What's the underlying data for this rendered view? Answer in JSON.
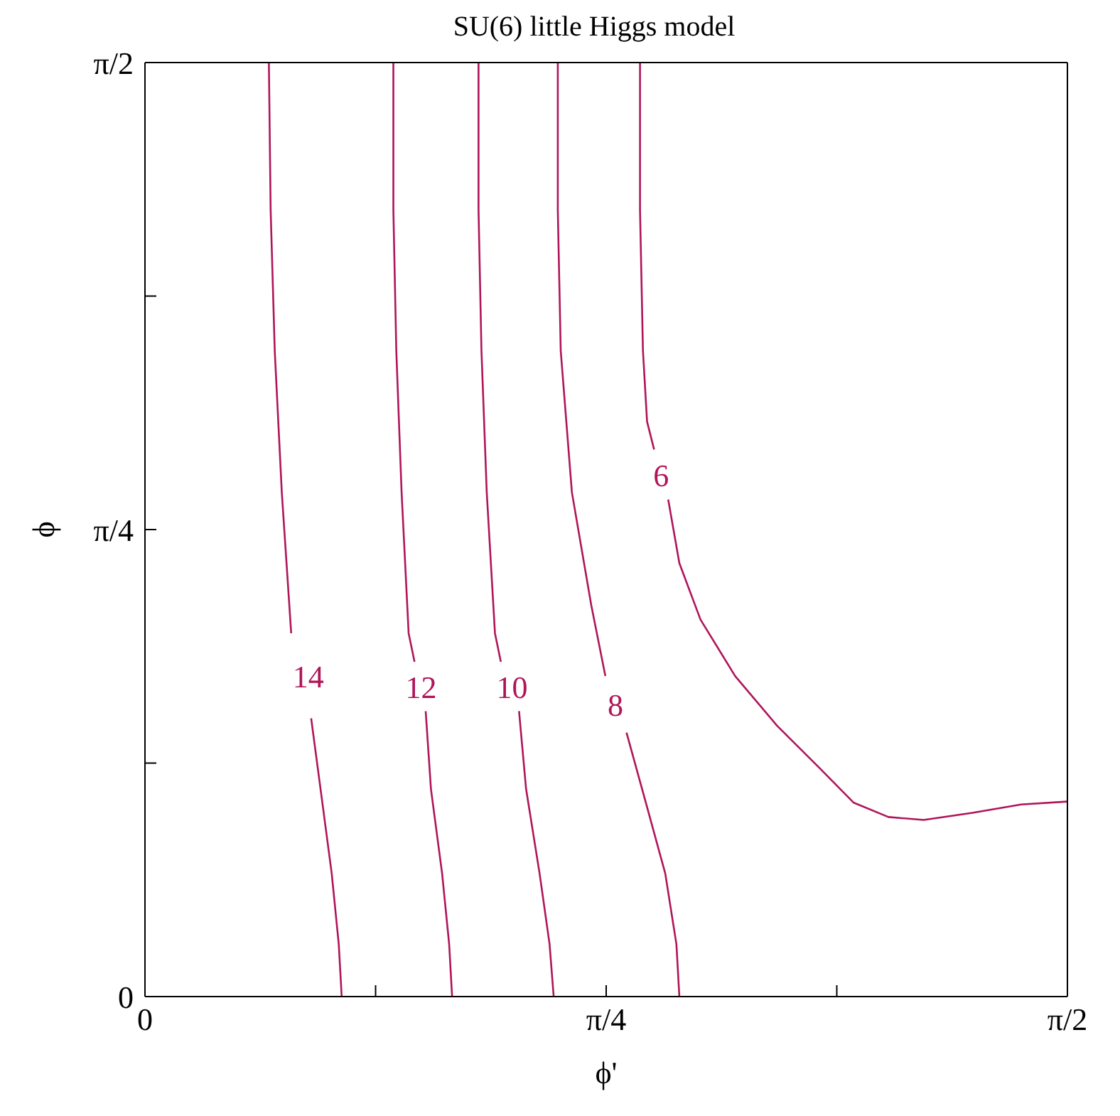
{
  "chart_data": {
    "type": "line",
    "title": "SU(6) little Higgs model",
    "xlabel": "ϕ'",
    "ylabel": "ϕ",
    "xlim": [
      0,
      1.5708
    ],
    "ylim": [
      0,
      1.5708
    ],
    "xticks": [
      {
        "value": 0,
        "label": "0"
      },
      {
        "value": 0.3927,
        "label": null
      },
      {
        "value": 0.7854,
        "label": "π/4"
      },
      {
        "value": 1.1781,
        "label": null
      },
      {
        "value": 1.5708,
        "label": "π/2"
      }
    ],
    "yticks": [
      {
        "value": 0,
        "label": "0"
      },
      {
        "value": 0.3927,
        "label": null
      },
      {
        "value": 0.7854,
        "label": "π/4"
      },
      {
        "value": 1.1781,
        "label": null
      },
      {
        "value": 1.5708,
        "label": "π/2"
      }
    ],
    "grid": false,
    "legend": false,
    "marker": "none",
    "line_style": "solid",
    "series": [
      {
        "name": "14",
        "color": "#b0155a",
        "x": [
          0.211,
          0.214,
          0.221,
          0.233,
          0.249,
          0.278,
          0.283,
          0.299,
          0.318,
          0.33,
          0.335
        ],
        "values": [
          1.5708,
          1.323,
          1.086,
          0.848,
          0.611,
          null,
          0.468,
          0.349,
          0.207,
          0.088,
          0
        ]
      },
      {
        "name": "12",
        "color": "#b0155a",
        "x": [
          0.423,
          0.423,
          0.428,
          0.437,
          0.449,
          0.459,
          0.47,
          0.478,
          0.487,
          0.506,
          0.518,
          0.523
        ],
        "values": [
          1.5708,
          1.323,
          1.086,
          0.848,
          0.611,
          0.563,
          null,
          0.48,
          0.349,
          0.207,
          0.088,
          0
        ]
      },
      {
        "name": "10",
        "color": "#b0155a",
        "x": [
          0.568,
          0.568,
          0.573,
          0.582,
          0.596,
          0.606,
          0.625,
          0.637,
          0.649,
          0.672,
          0.689,
          0.696
        ],
        "values": [
          1.5708,
          1.323,
          1.086,
          0.848,
          0.611,
          0.563,
          null,
          0.48,
          0.349,
          0.207,
          0.088,
          0
        ]
      },
      {
        "name": "8",
        "color": "#b0155a",
        "x": [
          0.703,
          0.703,
          0.708,
          0.727,
          0.76,
          0.784,
          0.801,
          0.82,
          0.853,
          0.886,
          0.905,
          0.91
        ],
        "values": [
          1.5708,
          1.323,
          1.086,
          0.848,
          0.658,
          0.539,
          null,
          0.444,
          0.326,
          0.207,
          0.088,
          0
        ]
      },
      {
        "name": "6",
        "color": "#b0155a",
        "x": [
          0.843,
          0.843,
          0.848,
          0.855,
          0.867,
          0.879,
          0.891,
          0.91,
          0.946,
          1.005,
          1.076,
          1.148,
          1.207,
          1.266,
          1.326,
          1.409,
          1.492,
          1.5708
        ],
        "values": [
          1.5708,
          1.323,
          1.086,
          0.967,
          0.92,
          null,
          0.836,
          0.729,
          0.634,
          0.539,
          0.456,
          0.385,
          0.326,
          0.302,
          0.297,
          0.309,
          0.323,
          0.328
        ]
      }
    ]
  }
}
